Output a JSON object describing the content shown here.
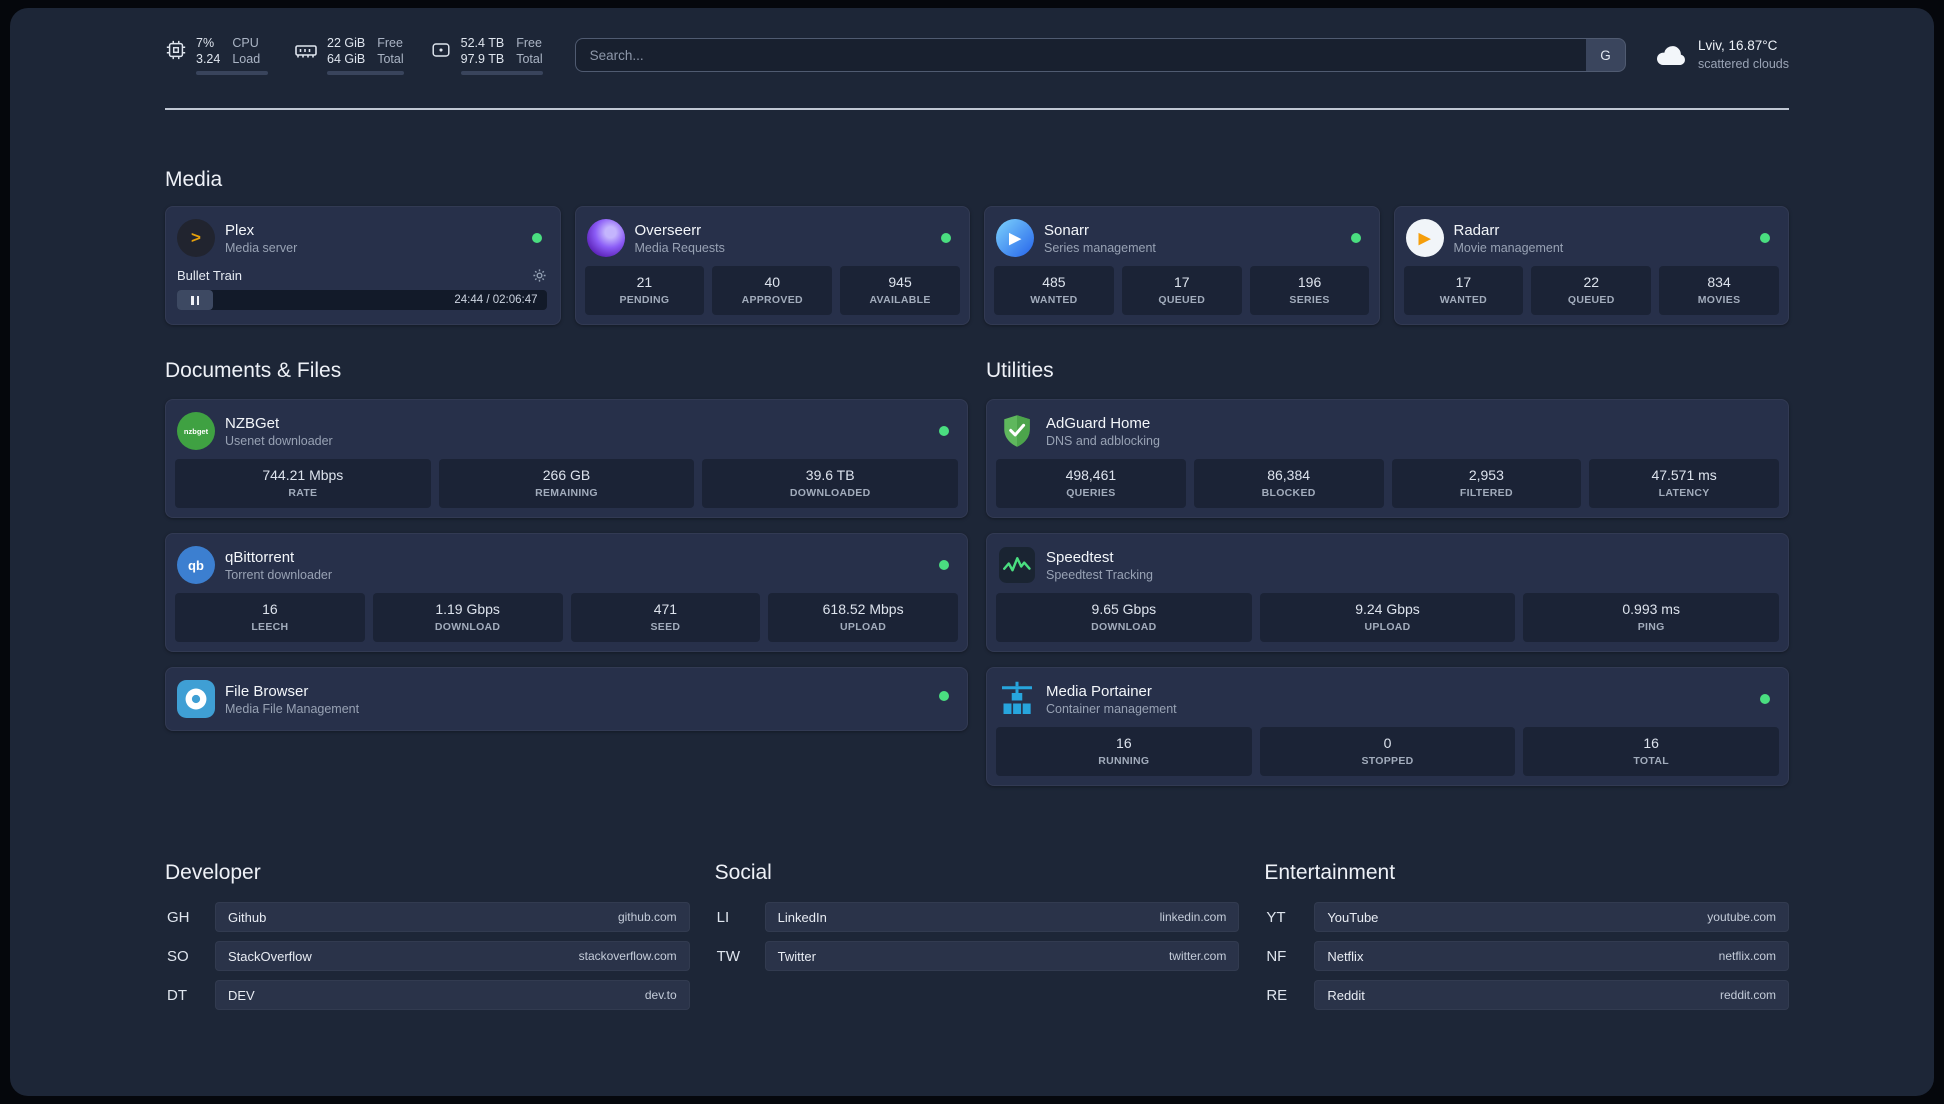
{
  "topbar": {
    "cpu": {
      "value1": "7%",
      "label1": "CPU",
      "value2": "3.24",
      "label2": "Load",
      "bar_pct": 7
    },
    "memory": {
      "value1": "22 GiB",
      "label1": "Free",
      "value2": "64 GiB",
      "label2": "Total",
      "bar_pct": 34
    },
    "disk": {
      "value1": "52.4 TB",
      "label1": "Free",
      "value2": "97.9 TB",
      "label2": "Total",
      "bar_pct": 54
    },
    "search": {
      "placeholder": "Search...",
      "button_label": "G"
    },
    "weather": {
      "location": "Lviv, 16.87°C",
      "condition": "scattered clouds"
    }
  },
  "colors": {
    "status_online": "#4ade80"
  },
  "media": {
    "title": "Media",
    "plex": {
      "name": "Plex",
      "desc": "Media server",
      "player_title": "Bullet Train",
      "player_time": "24:44 / 02:06:47"
    },
    "overseerr": {
      "name": "Overseerr",
      "desc": "Media Requests",
      "stats": [
        {
          "value": "21",
          "label": "PENDING"
        },
        {
          "value": "40",
          "label": "APPROVED"
        },
        {
          "value": "945",
          "label": "AVAILABLE"
        }
      ]
    },
    "sonarr": {
      "name": "Sonarr",
      "desc": "Series management",
      "stats": [
        {
          "value": "485",
          "label": "WANTED"
        },
        {
          "value": "17",
          "label": "QUEUED"
        },
        {
          "value": "196",
          "label": "SERIES"
        }
      ]
    },
    "radarr": {
      "name": "Radarr",
      "desc": "Movie management",
      "stats": [
        {
          "value": "17",
          "label": "WANTED"
        },
        {
          "value": "22",
          "label": "QUEUED"
        },
        {
          "value": "834",
          "label": "MOVIES"
        }
      ]
    }
  },
  "documents": {
    "title": "Documents & Files",
    "nzbget": {
      "name": "NZBGet",
      "desc": "Usenet downloader",
      "icon_text": "nzbget",
      "stats": [
        {
          "value": "744.21 Mbps",
          "label": "RATE"
        },
        {
          "value": "266 GB",
          "label": "REMAINING"
        },
        {
          "value": "39.6 TB",
          "label": "DOWNLOADED"
        }
      ]
    },
    "qbittorrent": {
      "name": "qBittorrent",
      "desc": "Torrent downloader",
      "icon_text": "qb",
      "stats": [
        {
          "value": "16",
          "label": "LEECH"
        },
        {
          "value": "1.19 Gbps",
          "label": "DOWNLOAD"
        },
        {
          "value": "471",
          "label": "SEED"
        },
        {
          "value": "618.52 Mbps",
          "label": "UPLOAD"
        }
      ]
    },
    "filebrowser": {
      "name": "File Browser",
      "desc": "Media File Management"
    }
  },
  "utilities": {
    "title": "Utilities",
    "adguard": {
      "name": "AdGuard Home",
      "desc": "DNS and adblocking",
      "stats": [
        {
          "value": "498,461",
          "label": "QUERIES"
        },
        {
          "value": "86,384",
          "label": "BLOCKED"
        },
        {
          "value": "2,953",
          "label": "FILTERED"
        },
        {
          "value": "47.571 ms",
          "label": "LATENCY"
        }
      ]
    },
    "speedtest": {
      "name": "Speedtest",
      "desc": "Speedtest Tracking",
      "stats": [
        {
          "value": "9.65 Gbps",
          "label": "DOWNLOAD"
        },
        {
          "value": "9.24 Gbps",
          "label": "UPLOAD"
        },
        {
          "value": "0.993 ms",
          "label": "PING"
        }
      ]
    },
    "portainer": {
      "name": "Media Portainer",
      "desc": "Container management",
      "stats": [
        {
          "value": "16",
          "label": "RUNNING"
        },
        {
          "value": "0",
          "label": "STOPPED"
        },
        {
          "value": "16",
          "label": "TOTAL"
        }
      ]
    }
  },
  "bookmarks": {
    "developer": {
      "title": "Developer",
      "items": [
        {
          "abbr": "GH",
          "name": "Github",
          "url": "github.com"
        },
        {
          "abbr": "SO",
          "name": "StackOverflow",
          "url": "stackoverflow.com"
        },
        {
          "abbr": "DT",
          "name": "DEV",
          "url": "dev.to"
        }
      ]
    },
    "social": {
      "title": "Social",
      "items": [
        {
          "abbr": "LI",
          "name": "LinkedIn",
          "url": "linkedin.com"
        },
        {
          "abbr": "TW",
          "name": "Twitter",
          "url": "twitter.com"
        }
      ]
    },
    "entertainment": {
      "title": "Entertainment",
      "items": [
        {
          "abbr": "YT",
          "name": "YouTube",
          "url": "youtube.com"
        },
        {
          "abbr": "NF",
          "name": "Netflix",
          "url": "netflix.com"
        },
        {
          "abbr": "RE",
          "name": "Reddit",
          "url": "reddit.com"
        }
      ]
    }
  }
}
